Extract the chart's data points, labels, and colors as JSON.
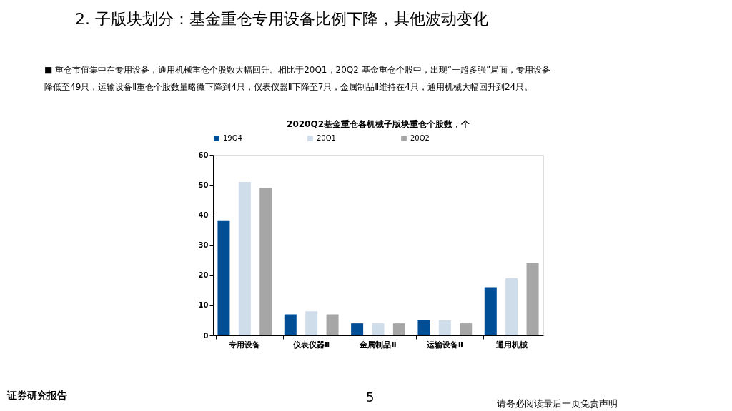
{
  "chart_data": {
    "type": "bar",
    "title": "2020Q2基金重仓各机械子版块重仓个股数，个",
    "categories": [
      "专用设备",
      "仪表仪器Ⅱ",
      "金属制品Ⅱ",
      "运输设备Ⅱ",
      "通用机械"
    ],
    "series": [
      {
        "name": "19Q4",
        "color": "#004e96",
        "values": [
          38,
          7,
          4,
          5,
          16
        ]
      },
      {
        "name": "20Q1",
        "color": "#cfdcea",
        "values": [
          51,
          8,
          4,
          5,
          19
        ]
      },
      {
        "name": "20Q2",
        "color": "#a6a6a6",
        "values": [
          49,
          7,
          4,
          4,
          24
        ]
      }
    ],
    "ylim": [
      0,
      60
    ],
    "yticks": [
      0,
      10,
      20,
      30,
      40,
      50,
      60
    ],
    "grid": false,
    "legend": "top",
    "annotations": [
      "2. 子版块划分：基金重仓专用设备比例下降，其他波动变化",
      "■ 重仓市值集中在专用设备，通用机械重仓个股数大幅回升。相比于20Q1，20Q2 基金重仓个股中，出现“一超多强”局面，专用设备",
      "降低至49只，运输设备Ⅱ重仓个股数量略微下降到4只，仪表仪器Ⅱ下降至7只，金属制品Ⅱ维持在4只，通用机械大幅回升到24只。",
      "证券研究报告",
      "5",
      "请务必阅读最后一页免责声明"
    ]
  }
}
